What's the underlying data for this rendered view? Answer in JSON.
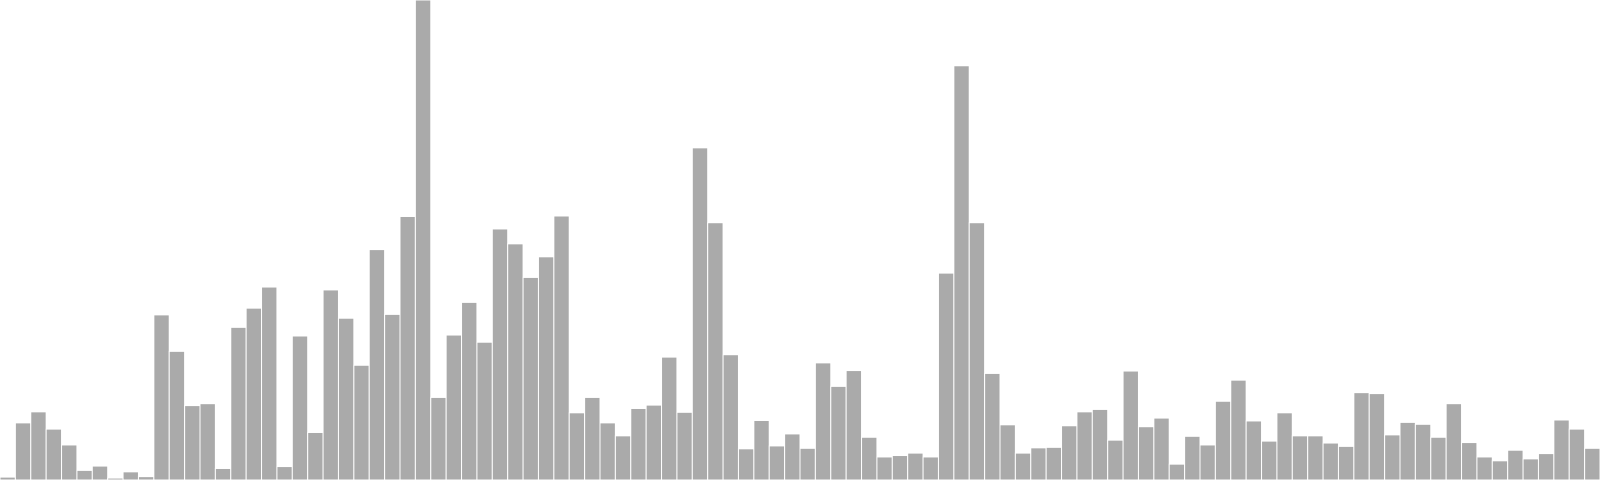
{
  "chart_data": {
    "type": "bar",
    "title": "",
    "xlabel": "",
    "ylabel": "",
    "grid": false,
    "legend": "none",
    "bar_color": "#aaaaaa",
    "edge_color": "#ffffff",
    "ylim": [
      0,
      100
    ],
    "values": [
      0.6,
      11.9,
      14.2,
      10.6,
      7.3,
      2.0,
      2.9,
      0.4,
      1.7,
      0.7,
      34.4,
      26.8,
      15.5,
      15.9,
      2.4,
      31.8,
      35.8,
      40.2,
      2.8,
      30.0,
      9.9,
      39.6,
      33.7,
      23.9,
      48.0,
      34.5,
      54.9,
      100.0,
      17.2,
      30.2,
      37.0,
      28.7,
      52.3,
      49.2,
      42.2,
      46.5,
      55.0,
      14.0,
      17.2,
      11.9,
      9.2,
      14.9,
      15.6,
      25.6,
      14.1,
      69.2,
      53.6,
      26.1,
      6.5,
      12.4,
      7.1,
      9.6,
      6.6,
      24.4,
      19.5,
      22.8,
      8.9,
      4.8,
      5.1,
      5.6,
      4.8,
      43.1,
      86.3,
      53.6,
      22.2,
      11.5,
      5.6,
      6.7,
      6.8,
      11.3,
      14.2,
      14.7,
      8.3,
      22.7,
      11.1,
      12.9,
      3.3,
      9.1,
      7.3,
      16.4,
      20.8,
      12.3,
      8.1,
      14.0,
      9.2,
      9.2,
      7.7,
      7.0,
      18.2,
      18.0,
      9.4,
      12.0,
      11.6,
      8.9,
      15.9,
      7.8,
      4.8,
      4.0,
      6.2,
      4.4,
      5.5,
      12.5,
      10.6,
      6.6
    ]
  }
}
